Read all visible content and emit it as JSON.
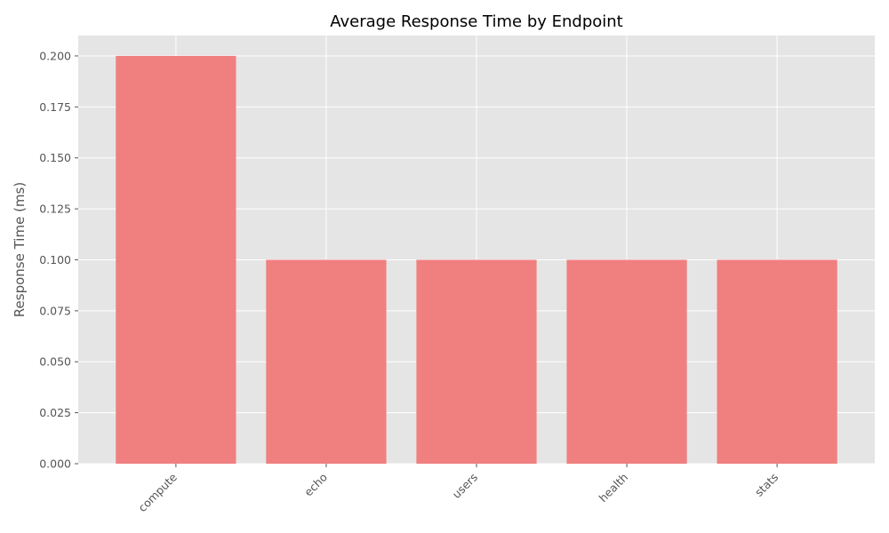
{
  "chart_data": {
    "type": "bar",
    "title": "Average Response Time by Endpoint",
    "xlabel": "",
    "ylabel": "Response Time (ms)",
    "categories": [
      "compute",
      "echo",
      "users",
      "health",
      "stats"
    ],
    "values": [
      0.2,
      0.1,
      0.1,
      0.1,
      0.1
    ],
    "ylim": [
      0,
      0.21
    ],
    "yticks": [
      0.0,
      0.025,
      0.05,
      0.075,
      0.1,
      0.125,
      0.15,
      0.175,
      0.2
    ],
    "ytick_labels": [
      "0.000",
      "0.025",
      "0.050",
      "0.075",
      "0.100",
      "0.125",
      "0.150",
      "0.175",
      "0.200"
    ],
    "grid": true,
    "bar_color": "#f08080",
    "plot_background": "#e5e5e5",
    "grid_color": "#ffffff"
  }
}
